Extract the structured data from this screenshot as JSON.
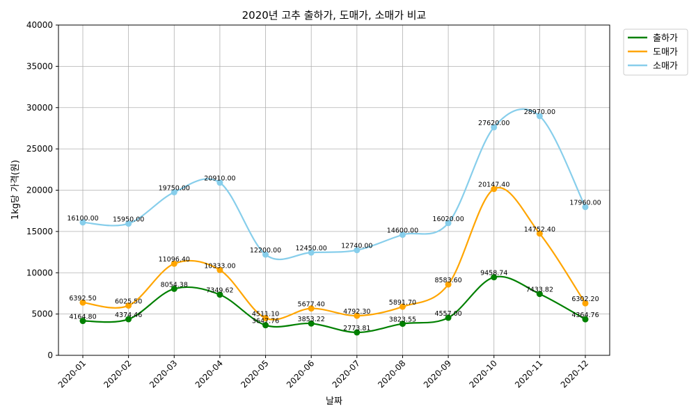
{
  "chart_data": {
    "type": "line",
    "title": "2020년 고추 출하가, 도매가, 소매가 비교",
    "xlabel": "날짜",
    "ylabel": "1kg당 가격(원)",
    "ylim": [
      0,
      40000
    ],
    "yticks": [
      0,
      5000,
      10000,
      15000,
      20000,
      25000,
      30000,
      35000,
      40000
    ],
    "grid": true,
    "legend_position": "outside top-right",
    "smoothed": true,
    "categories": [
      "2020-01",
      "2020-02",
      "2020-03",
      "2020-04",
      "2020-05",
      "2020-06",
      "2020-07",
      "2020-08",
      "2020-09",
      "2020-10",
      "2020-11",
      "2020-12"
    ],
    "series": [
      {
        "name": "출하가",
        "color": "#008000",
        "values": [
          4164.8,
          4374.46,
          8054.38,
          7349.62,
          3647.76,
          3853.22,
          2773.81,
          3823.55,
          4557.0,
          9458.74,
          7433.82,
          4364.76
        ],
        "labels": [
          "4164.80",
          "4374.46",
          "8054.38",
          "7349.62",
          "3647.76",
          "3853.22",
          "2773.81",
          "3823.55",
          "4557.00",
          "9458.74",
          "7433.82",
          "4364.76"
        ]
      },
      {
        "name": "도매가",
        "color": "#ffa500",
        "values": [
          6392.5,
          6025.5,
          11096.4,
          10333.0,
          4511.1,
          5677.4,
          4792.3,
          5891.7,
          8583.6,
          20147.4,
          14752.4,
          6302.2
        ],
        "labels": [
          "6392.50",
          "6025.50",
          "11096.40",
          "10333.00",
          "4511.10",
          "5677.40",
          "4792.30",
          "5891.70",
          "8583.60",
          "20147.40",
          "14752.40",
          "6302.20"
        ]
      },
      {
        "name": "소매가",
        "color": "#87ceeb",
        "values": [
          16100.0,
          15950.0,
          19750.0,
          20910.0,
          12200.0,
          12450.0,
          12740.0,
          14600.0,
          16020.0,
          27620.0,
          28970.0,
          17960.0
        ],
        "labels": [
          "16100.00",
          "15950.00",
          "19750.00",
          "20910.00",
          "12200.00",
          "12450.00",
          "12740.00",
          "14600.00",
          "16020.00",
          "27620.00",
          "28970.00",
          "17960.00"
        ]
      }
    ]
  }
}
